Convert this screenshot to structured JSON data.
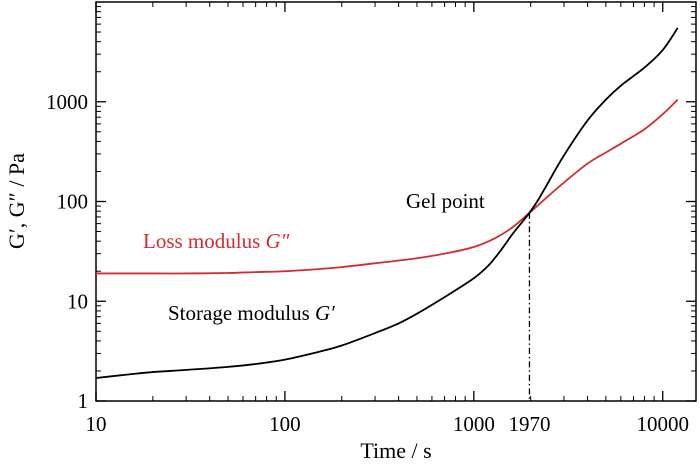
{
  "chart_data": {
    "type": "line",
    "xscale": "log",
    "yscale": "log",
    "xlim": [
      10,
      15000
    ],
    "ylim": [
      1,
      10000
    ],
    "xlabel": "Time / s",
    "ylabel": "G′, G″ / Pa",
    "xticks": [
      {
        "value": 10,
        "label": "10"
      },
      {
        "value": 100,
        "label": "100"
      },
      {
        "value": 1000,
        "label": "1000"
      },
      {
        "value": 1970,
        "label": "1970"
      },
      {
        "value": 10000,
        "label": "10000"
      }
    ],
    "yticks": [
      {
        "value": 1,
        "label": "1"
      },
      {
        "value": 10,
        "label": "10"
      },
      {
        "value": 100,
        "label": "100"
      },
      {
        "value": 1000,
        "label": "1000"
      }
    ],
    "grid": false,
    "legend": "none",
    "series": [
      {
        "name": "Storage modulus G′",
        "color": "#000000",
        "x": [
          10,
          15,
          20,
          30,
          50,
          70,
          100,
          150,
          200,
          300,
          400,
          500,
          700,
          1000,
          1200,
          1400,
          1600,
          1800,
          1970,
          2200,
          2500,
          3000,
          4000,
          5000,
          6000,
          8000,
          10000,
          12000
        ],
        "y": [
          1.7,
          1.85,
          1.95,
          2.05,
          2.2,
          2.35,
          2.6,
          3.1,
          3.6,
          4.8,
          6.0,
          7.5,
          11,
          17,
          23,
          33,
          47,
          62,
          77,
          105,
          160,
          290,
          650,
          1050,
          1450,
          2200,
          3300,
          5500
        ]
      },
      {
        "name": "Loss modulus G″",
        "color": "#d42b33",
        "x": [
          10,
          20,
          30,
          50,
          70,
          100,
          150,
          200,
          300,
          500,
          700,
          1000,
          1300,
          1600,
          1970,
          2500,
          3000,
          4000,
          5000,
          6000,
          8000,
          10000,
          12000
        ],
        "y": [
          19,
          19,
          19,
          19.2,
          19.6,
          20,
          21,
          22,
          24,
          27,
          30,
          35,
          43,
          55,
          77,
          115,
          155,
          240,
          310,
          380,
          530,
          750,
          1050
        ]
      }
    ],
    "annotations": [
      {
        "text": "Gel point",
        "x": 1970,
        "y": 77
      },
      {
        "text": "Loss modulus G″",
        "series": "Loss modulus G″"
      },
      {
        "text": "Storage modulus G′",
        "series": "Storage modulus G′"
      }
    ],
    "vline": {
      "x": 1970,
      "style": "dash-dot"
    }
  },
  "labels": {
    "gel_point": "Gel point",
    "loss_prefix": "Loss modulus ",
    "loss_symbol": "G″",
    "storage_prefix": "Storage modulus ",
    "storage_symbol": "G′"
  }
}
